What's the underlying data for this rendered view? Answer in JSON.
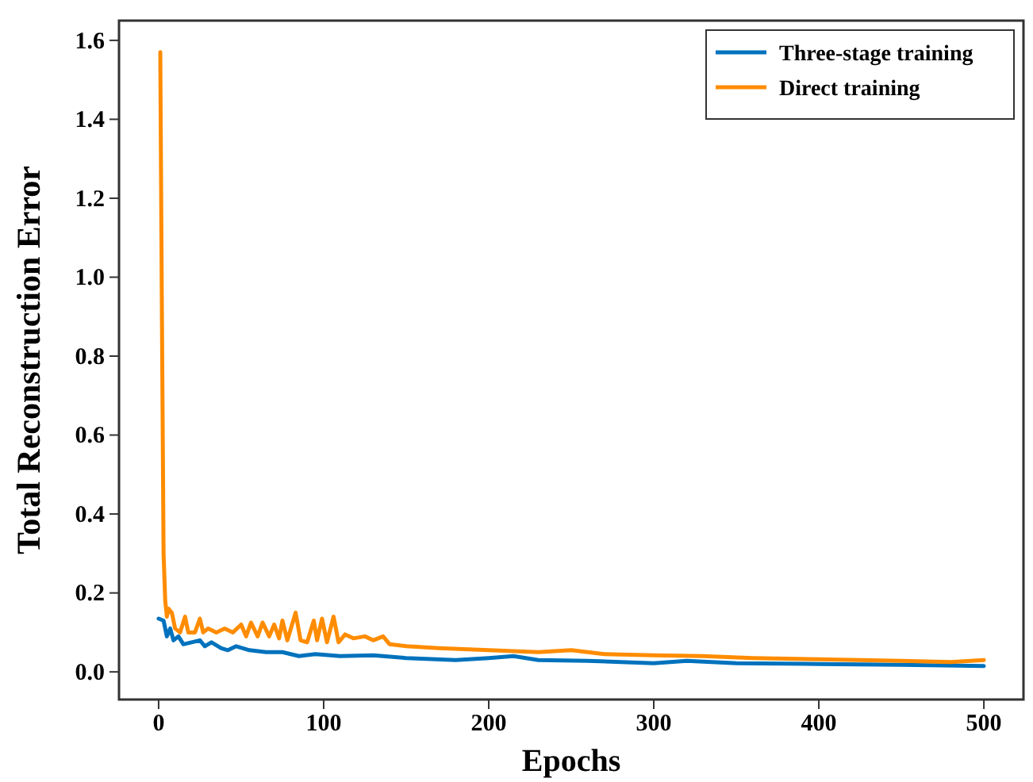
{
  "chart_data": {
    "type": "line",
    "xlabel": "Epochs",
    "ylabel": "Total Reconstruction Error",
    "xlim": [
      -24,
      524
    ],
    "xticks": [
      0,
      100,
      200,
      300,
      400,
      500
    ],
    "ylim": [
      -0.07,
      1.65
    ],
    "yticks": [
      {
        "value": 0,
        "label": "0.0"
      },
      {
        "value": 0.2,
        "label": "0.2"
      },
      {
        "value": 0.4,
        "label": "0.4"
      },
      {
        "value": 0.6,
        "label": "0.6"
      },
      {
        "value": 0.8,
        "label": "0.8"
      },
      {
        "value": 1,
        "label": "1.0"
      },
      {
        "value": 1.2,
        "label": "1.2"
      },
      {
        "value": 1.4,
        "label": "1.4"
      },
      {
        "value": 1.6,
        "label": "1.6"
      }
    ],
    "legend": "top right",
    "grid": false,
    "series": [
      {
        "name": "Three-stage training",
        "color": "#0072bd",
        "x": [
          0,
          3,
          5,
          7,
          9,
          12,
          15,
          20,
          25,
          28,
          32,
          38,
          42,
          47,
          55,
          65,
          75,
          85,
          95,
          110,
          130,
          150,
          180,
          200,
          215,
          230,
          260,
          300,
          320,
          350,
          400,
          450,
          500
        ],
        "values": [
          0.135,
          0.13,
          0.09,
          0.11,
          0.08,
          0.09,
          0.07,
          0.075,
          0.08,
          0.065,
          0.075,
          0.06,
          0.055,
          0.065,
          0.055,
          0.05,
          0.05,
          0.04,
          0.045,
          0.04,
          0.042,
          0.035,
          0.03,
          0.035,
          0.04,
          0.03,
          0.028,
          0.022,
          0.028,
          0.022,
          0.02,
          0.018,
          0.015
        ]
      },
      {
        "name": "Direct training",
        "color": "#ff8c00",
        "x": [
          1,
          2,
          3,
          4,
          5,
          6,
          8,
          10,
          13,
          16,
          18,
          22,
          25,
          27,
          30,
          35,
          40,
          45,
          50,
          53,
          56,
          60,
          63,
          67,
          70,
          73,
          75,
          78,
          83,
          86,
          90,
          94,
          96,
          99,
          102,
          106,
          109,
          113,
          118,
          125,
          130,
          136,
          140,
          150,
          170,
          200,
          230,
          250,
          270,
          300,
          330,
          360,
          400,
          450,
          480,
          500
        ],
        "values": [
          1.57,
          0.9,
          0.3,
          0.18,
          0.14,
          0.16,
          0.15,
          0.11,
          0.1,
          0.14,
          0.1,
          0.1,
          0.135,
          0.1,
          0.11,
          0.1,
          0.11,
          0.1,
          0.12,
          0.09,
          0.125,
          0.09,
          0.125,
          0.09,
          0.12,
          0.085,
          0.13,
          0.08,
          0.15,
          0.08,
          0.075,
          0.13,
          0.08,
          0.135,
          0.075,
          0.14,
          0.075,
          0.095,
          0.085,
          0.09,
          0.08,
          0.09,
          0.07,
          0.065,
          0.06,
          0.055,
          0.05,
          0.055,
          0.045,
          0.042,
          0.04,
          0.035,
          0.032,
          0.028,
          0.025,
          0.03
        ]
      }
    ]
  }
}
